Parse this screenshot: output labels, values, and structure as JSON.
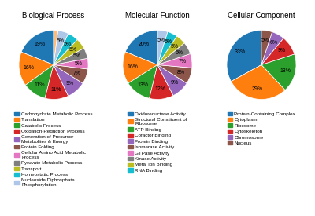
{
  "chart_data": [
    {
      "type": "pie",
      "title": "Biological Process",
      "categories": [
        "Carbohydrate Metabolic Process",
        "Translation",
        "Catabolic Process",
        "Oxidation-Reduction Process",
        "Generation of Precursor\nMetabolites & Energy",
        "Protein Folding",
        "Cellular Amino Acid Metabolic\nProcess",
        "Pyruvate Metabolic Process",
        "Transport",
        "Homeostatic Process",
        "Nucleoside Diphosphate\nPhosphorylation",
        null
      ],
      "values": [
        19,
        16,
        11,
        11,
        9,
        7,
        5,
        5,
        5,
        5,
        5,
        2
      ],
      "value_labels": [
        "19%",
        "16%",
        "11%",
        "11%",
        "9%",
        "7%",
        "5%",
        "5%",
        "5%",
        "5%",
        "5%",
        null
      ],
      "legend": "upper center"
    },
    {
      "type": "pie",
      "title": "Molecular Function",
      "categories": [
        "Oxidoreductase Activity",
        "Structural Constituent of\nRibosome",
        "ATP Binding",
        "Cofactor Binding",
        "Protein Binding",
        "Isomerase Activity",
        "GTPase Activity",
        "Kinase Activity",
        "Metal Ion Binding",
        "RNA Binding",
        null
      ],
      "values": [
        20,
        16,
        13,
        12,
        9,
        8,
        7,
        6,
        5,
        5,
        5
      ],
      "value_labels": [
        "20%",
        "16%",
        "13%",
        "12%",
        "9%",
        "8%",
        "7%",
        "6%",
        "5%",
        "5%",
        "5%"
      ],
      "legend": "upper center"
    },
    {
      "type": "pie",
      "title": "Cellular Component",
      "categories": [
        "Protein-Containing Complex",
        "Cytoplasm",
        "Ribosome",
        "Cytoskeleton",
        "Chromosome",
        "Nucleus"
      ],
      "values": [
        33,
        29,
        18,
        9,
        6,
        5
      ],
      "value_labels": [
        "33%",
        "29%",
        "18%",
        "9%",
        "6%",
        "5%"
      ],
      "legend": "upper center"
    }
  ]
}
